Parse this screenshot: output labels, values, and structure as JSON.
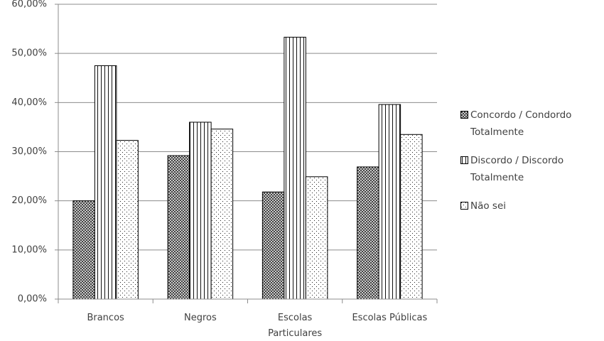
{
  "chart_data": {
    "type": "bar",
    "categories": [
      "Brancos",
      "Negros",
      "Escolas Particulares",
      "Escolas Públicas"
    ],
    "series": [
      {
        "name": "Concordo / Condordo Totalmente",
        "color": "#000000",
        "pattern": "crosshatch",
        "values": [
          20.0,
          29.2,
          21.8,
          26.9
        ]
      },
      {
        "name": "Discordo / Discordo Totalmente",
        "color": "#000000",
        "pattern": "vertical",
        "values": [
          47.5,
          36.0,
          53.3,
          39.6
        ]
      },
      {
        "name": "Não sei",
        "color": "#000000",
        "pattern": "dots",
        "values": [
          32.3,
          34.6,
          24.9,
          33.5
        ]
      }
    ],
    "ylim": [
      0,
      60
    ],
    "yticks": [
      {
        "value": 0,
        "label": "0,00%"
      },
      {
        "value": 10,
        "label": "10,00%"
      },
      {
        "value": 20,
        "label": "20,00%"
      },
      {
        "value": 30,
        "label": "30,00%"
      },
      {
        "value": 40,
        "label": "40,00%"
      },
      {
        "value": 50,
        "label": "50,00%"
      },
      {
        "value": 60,
        "label": "60,00%"
      }
    ],
    "grid": true,
    "legend": "right"
  }
}
